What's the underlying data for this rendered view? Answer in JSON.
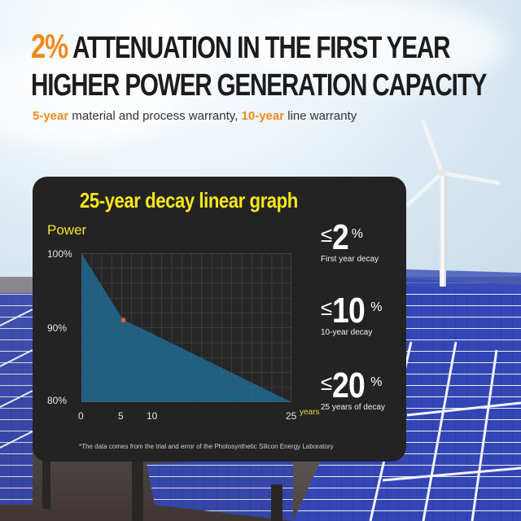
{
  "header": {
    "headline_accent": "2%",
    "headline_line1_rest": " ATTENUATION IN THE FIRST YEAR",
    "headline_line2": "HIGHER POWER GENERATION CAPACITY",
    "subline": {
      "part1_accent": "5-year",
      "part1_rest": " material and process warranty, ",
      "part2_accent": "10-year",
      "part2_rest": " line warranty"
    }
  },
  "panel": {
    "title": "25-year decay linear graph",
    "power_label": "Power",
    "y_ticks": [
      "100%",
      "90%",
      "80%"
    ],
    "x_ticks": [
      "0",
      "5",
      "10",
      "25"
    ],
    "x_unit": "years",
    "stats": [
      {
        "prefix": "≤",
        "value": "2",
        "unit": "%",
        "caption": "First year decay"
      },
      {
        "prefix": "≤",
        "value": "10",
        "unit": "%",
        "caption": "10-year decay"
      },
      {
        "prefix": "≤",
        "value": "20",
        "unit": "%",
        "caption": "25 years of decay"
      }
    ],
    "footnote": "*The data comes from the trial and error of the Photosynthetic Silicon Energy Laboratory"
  },
  "colors": {
    "accent_orange": "#f08a1e",
    "title_yellow": "#f5e71a",
    "panel_bg": "#232323",
    "area_fill": "#1f5f82",
    "marker": "#f0652a"
  },
  "chart_data": {
    "type": "area",
    "title": "25-year decay linear graph",
    "xlabel": "years",
    "ylabel": "Power",
    "x": [
      0,
      5,
      7,
      25
    ],
    "values": [
      100,
      91,
      90,
      80
    ],
    "highlight_point": {
      "x": 5,
      "y": 91
    },
    "xlim": [
      0,
      25
    ],
    "ylim": [
      80,
      100
    ],
    "x_ticks": [
      0,
      5,
      10,
      25
    ],
    "y_ticks": [
      "80%",
      "90%",
      "100%"
    ],
    "grid": true,
    "legend": "none"
  }
}
